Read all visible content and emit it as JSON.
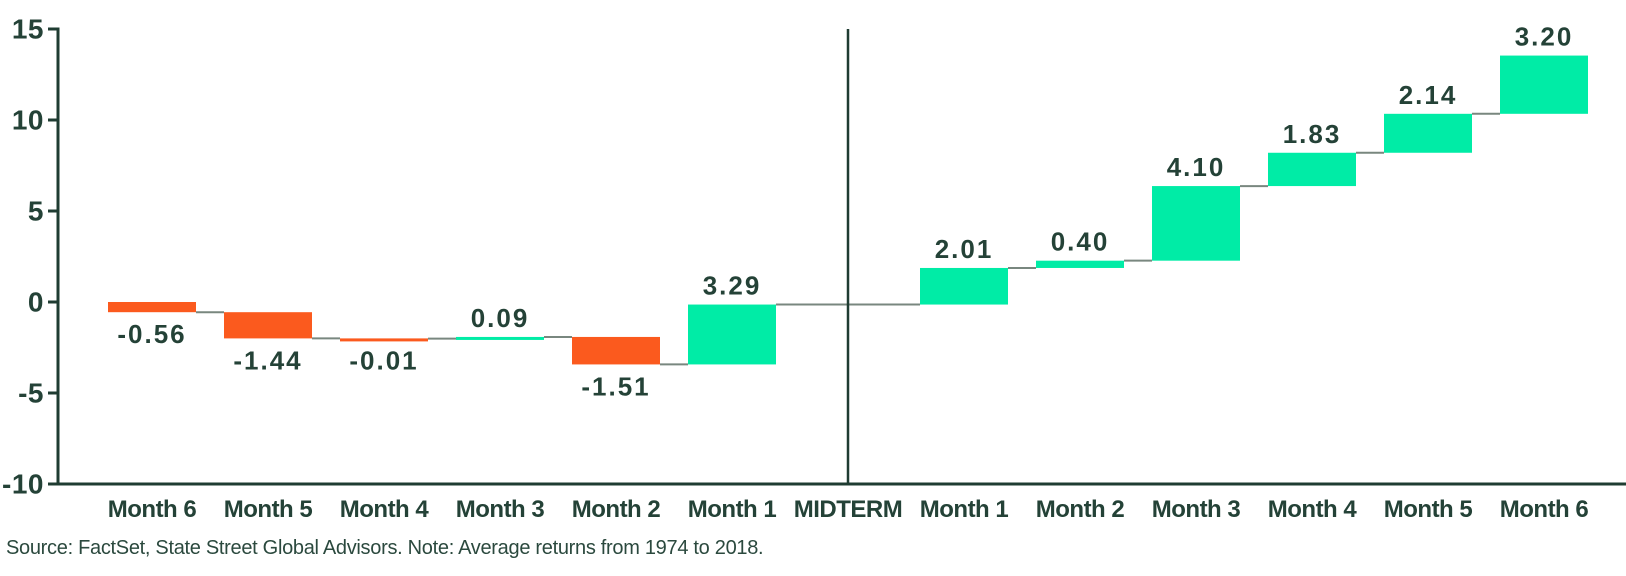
{
  "chart_data": {
    "type": "bar",
    "subtype": "waterfall",
    "categories": [
      "Month 6",
      "Month 5",
      "Month 4",
      "Month 3",
      "Month 2",
      "Month 1",
      "MIDTERM",
      "Month 1",
      "Month 2",
      "Month 3",
      "Month 4",
      "Month 5",
      "Month 6"
    ],
    "values": [
      -0.56,
      -1.44,
      -0.01,
      0.09,
      -1.51,
      3.29,
      null,
      2.01,
      0.4,
      4.1,
      1.83,
      2.14,
      3.2
    ],
    "value_label_decimals": 2,
    "cumulative_start": 0,
    "ylim": [
      -10,
      15
    ],
    "yticks": [
      15,
      10,
      5,
      0,
      -5,
      -10
    ],
    "grid": false,
    "legend_position": "none",
    "divider_category": "MIDTERM",
    "colors": {
      "positive": "#00ECA6",
      "negative": "#FB5A1E",
      "axis": "#1F3C32",
      "label_text": "#244237",
      "connector": "#79877F",
      "divider": "#1F3C32",
      "background": "#FFFFFF",
      "source_text": "#2B493E"
    }
  },
  "footer": {
    "source_note": "Source: FactSet, State Street Global Advisors. Note: Average returns from 1974 to 2018."
  }
}
